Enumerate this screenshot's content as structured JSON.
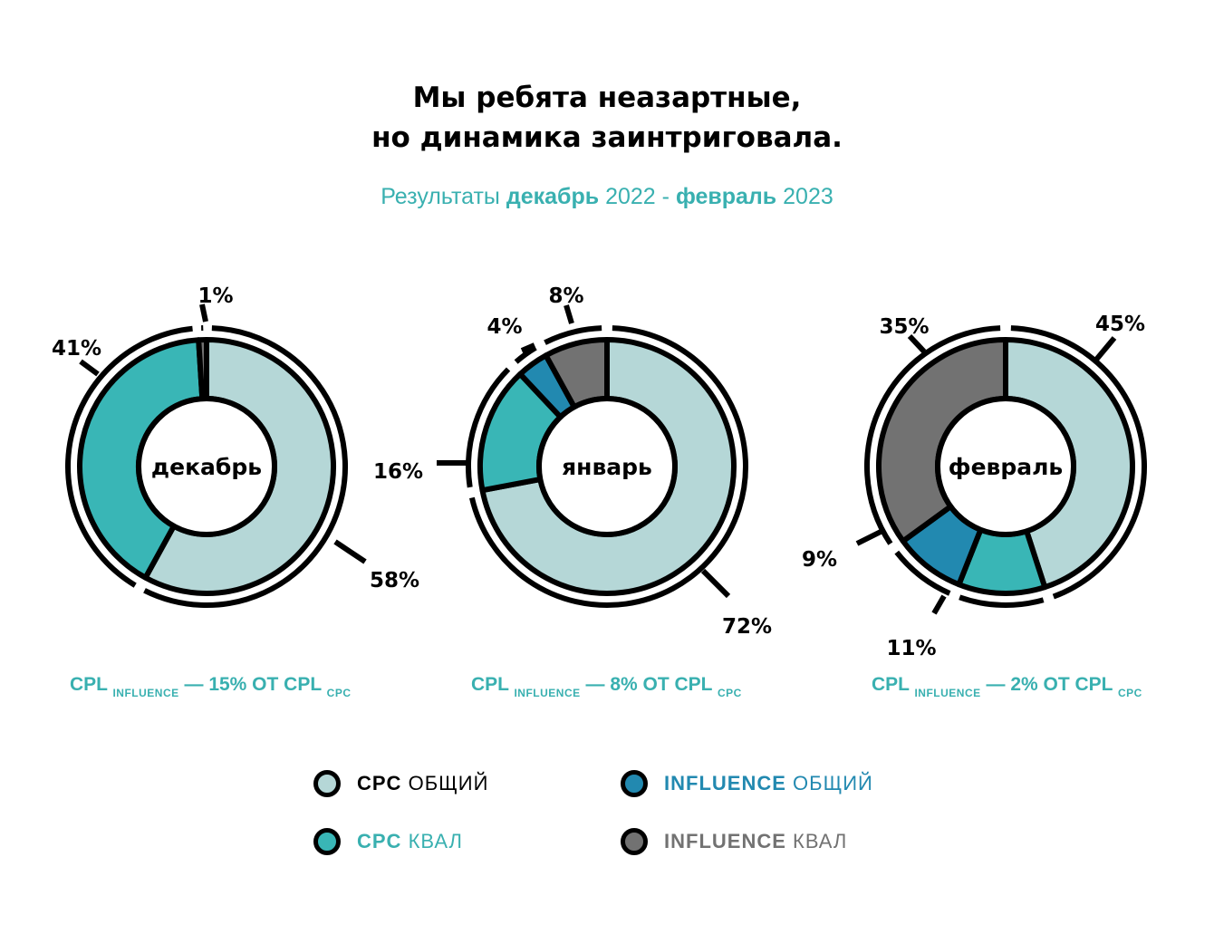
{
  "title_line1": "Мы ребята неазартные,",
  "title_line2": "но динамика заинтриговала.",
  "subtitle": {
    "prefix": "Результаты",
    "month_from": "декабрь",
    "year_from": "2022 -",
    "month_to": "февраль",
    "year_to": "2023"
  },
  "colors": {
    "cpc_total": "#b5d7d7",
    "cpc_qual": "#39b6b6",
    "influence_total": "#2289b0",
    "influence_qual": "#727272",
    "accent": "#39b0b0"
  },
  "chart_data": [
    {
      "type": "pie",
      "center_label": "декабрь",
      "slices": [
        {
          "key": "cpc_total",
          "value": 58,
          "label": "58%"
        },
        {
          "key": "cpc_qual",
          "value": 41,
          "label": "41%"
        },
        {
          "key": "influence_qual",
          "value": 1,
          "label": "1%"
        }
      ]
    },
    {
      "type": "pie",
      "center_label": "январь",
      "slices": [
        {
          "key": "cpc_total",
          "value": 72,
          "label": "72%"
        },
        {
          "key": "cpc_qual",
          "value": 16,
          "label": "16%"
        },
        {
          "key": "influence_total",
          "value": 4,
          "label": "4%"
        },
        {
          "key": "influence_qual",
          "value": 8,
          "label": "8%"
        }
      ]
    },
    {
      "type": "pie",
      "center_label": "февраль",
      "slices": [
        {
          "key": "cpc_total",
          "value": 45,
          "label": "45%"
        },
        {
          "key": "cpc_qual",
          "value": 11,
          "label": "11%"
        },
        {
          "key": "influence_total",
          "value": 9,
          "label": "9%"
        },
        {
          "key": "influence_qual",
          "value": 35,
          "label": "35%"
        }
      ]
    }
  ],
  "cpl_notes": [
    {
      "main": "CPL",
      "sub1": "INFLUENCE",
      "mid": "— 15% ОТ CPL",
      "sub2": "CPC"
    },
    {
      "main": "CPL",
      "sub1": "INFLUENCE",
      "mid": "— 8% ОТ CPL",
      "sub2": "CPC"
    },
    {
      "main": "CPL",
      "sub1": "INFLUENCE",
      "mid": "— 2% ОТ CPL",
      "sub2": "CPC"
    }
  ],
  "legend": [
    {
      "key": "cpc_total",
      "bold": "CPC",
      "rest": "ОБЩИЙ",
      "text_color": "#000000"
    },
    {
      "key": "influence_total",
      "bold": "INFLUENCE",
      "rest": "ОБЩИЙ",
      "text_color": "#2289b0"
    },
    {
      "key": "cpc_qual",
      "bold": "CPC",
      "rest": "КВАЛ",
      "text_color": "#39b0b0"
    },
    {
      "key": "influence_qual",
      "bold": "INFLUENCE",
      "rest": "КВАЛ",
      "text_color": "#727272"
    }
  ]
}
